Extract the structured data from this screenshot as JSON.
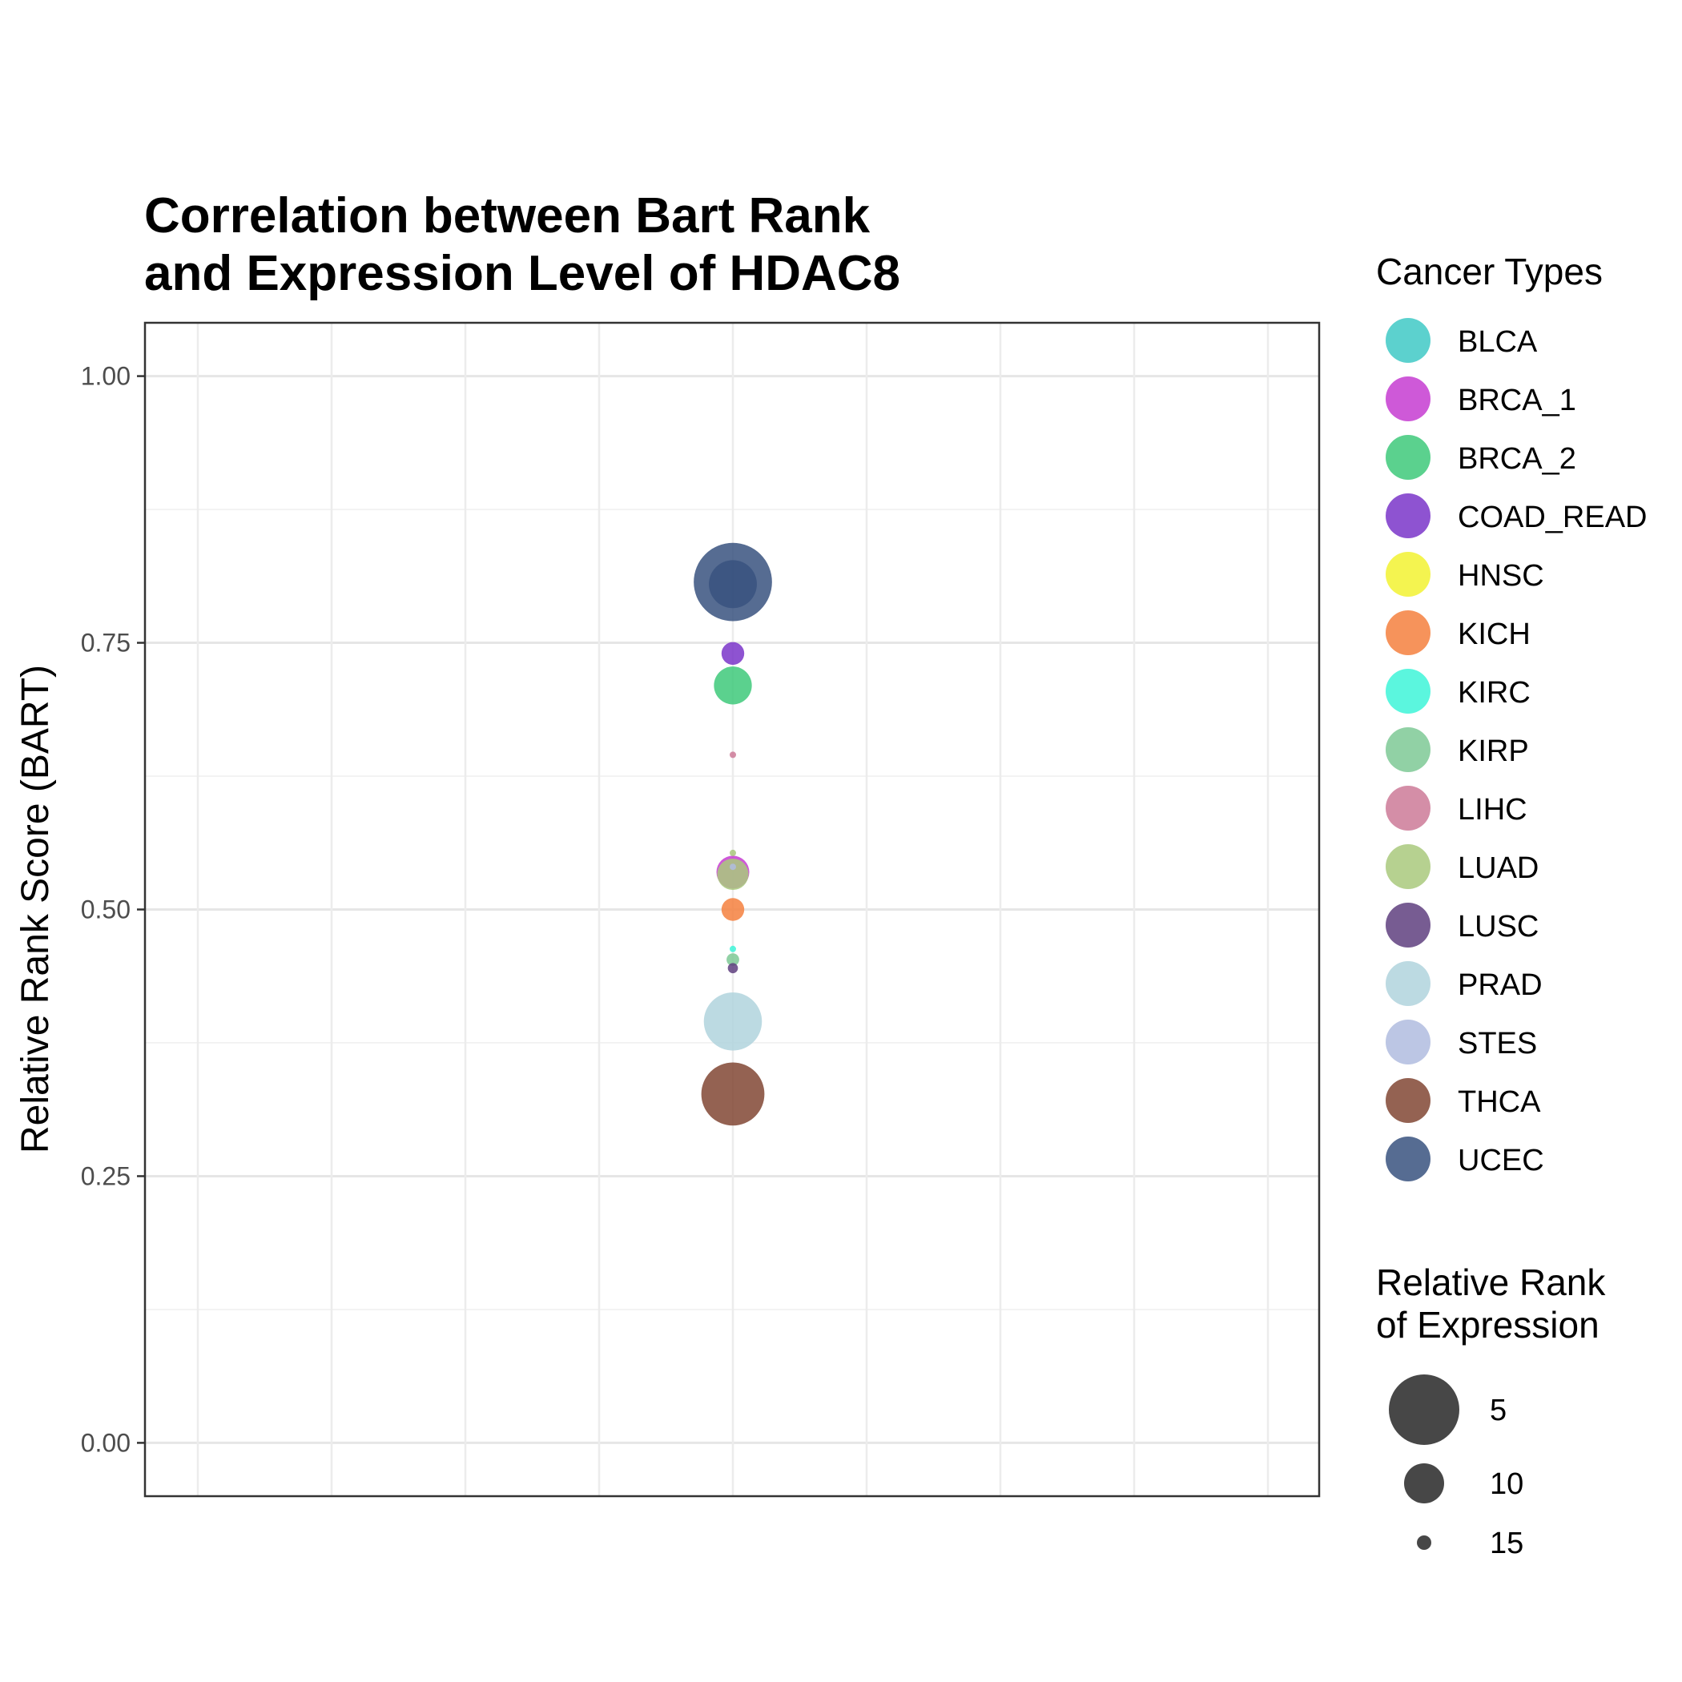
{
  "chart_data": {
    "type": "scatter",
    "title": [
      "Correlation between Bart Rank",
      "and Expression Level of HDAC8"
    ],
    "xlabel": "",
    "ylabel": "Relative Rank Score (BART)",
    "ylim": [
      -0.05,
      1.05
    ],
    "y_ticks": [
      {
        "value": 0.0,
        "label": "0.00"
      },
      {
        "value": 0.25,
        "label": "0.25"
      },
      {
        "value": 0.5,
        "label": "0.50"
      },
      {
        "value": 0.75,
        "label": "0.75"
      },
      {
        "value": 1.0,
        "label": "1.00"
      }
    ],
    "y_minor": [
      0.125,
      0.375,
      0.625,
      0.875
    ],
    "grid": true,
    "points": [
      {
        "name": "UCEC",
        "y": 0.807,
        "size": 1
      },
      {
        "name": "UCEC",
        "y": 0.805,
        "size": 7
      },
      {
        "name": "COAD_READ",
        "y": 0.74,
        "size": 12
      },
      {
        "name": "BRCA_2",
        "y": 0.71,
        "size": 9
      },
      {
        "name": "LIHC",
        "y": 0.645,
        "size": 16
      },
      {
        "name": "LUAD",
        "y": 0.553,
        "size": 18
      },
      {
        "name": "BRCA_1",
        "y": 0.535,
        "size": 10
      },
      {
        "name": "LUAD",
        "y": 0.533,
        "size": 10.3
      },
      {
        "name": "STES",
        "y": 0.54,
        "size": 16
      },
      {
        "name": "KICH",
        "y": 0.5,
        "size": 12
      },
      {
        "name": "KIRC",
        "y": 0.463,
        "size": 18
      },
      {
        "name": "KIRP",
        "y": 0.453,
        "size": 14
      },
      {
        "name": "LUSC",
        "y": 0.445,
        "size": 14.5
      },
      {
        "name": "PRAD",
        "y": 0.395,
        "size": 5
      },
      {
        "name": "THCA",
        "y": 0.327,
        "size": 4
      }
    ],
    "legend_color": {
      "title": "Cancer Types",
      "placement": "right",
      "entries": [
        {
          "label": "BLCA",
          "color": "#3fc9c5"
        },
        {
          "label": "BRCA_1",
          "color": "#c63cd1"
        },
        {
          "label": "BRCA_2",
          "color": "#3ec97a"
        },
        {
          "label": "COAD_READ",
          "color": "#7a35c9"
        },
        {
          "label": "HNSC",
          "color": "#f2f231"
        },
        {
          "label": "KICH",
          "color": "#f5803e"
        },
        {
          "label": "KIRC",
          "color": "#3ef5d8"
        },
        {
          "label": "KIRP",
          "color": "#7ec995"
        },
        {
          "label": "LIHC",
          "color": "#cc7a98"
        },
        {
          "label": "LUAD",
          "color": "#a9c97c"
        },
        {
          "label": "LUSC",
          "color": "#5f3f7f"
        },
        {
          "label": "PRAD",
          "color": "#b0d4dd"
        },
        {
          "label": "STES",
          "color": "#b0bcdf"
        },
        {
          "label": "THCA",
          "color": "#814634"
        },
        {
          "label": "UCEC",
          "color": "#38527f"
        }
      ]
    },
    "legend_size": {
      "title": [
        "Relative Rank",
        "of Expression"
      ],
      "color": "#333333",
      "entries": [
        {
          "label": "5",
          "value": 5
        },
        {
          "label": "10",
          "value": 10
        },
        {
          "label": "15",
          "value": 15
        }
      ]
    }
  }
}
